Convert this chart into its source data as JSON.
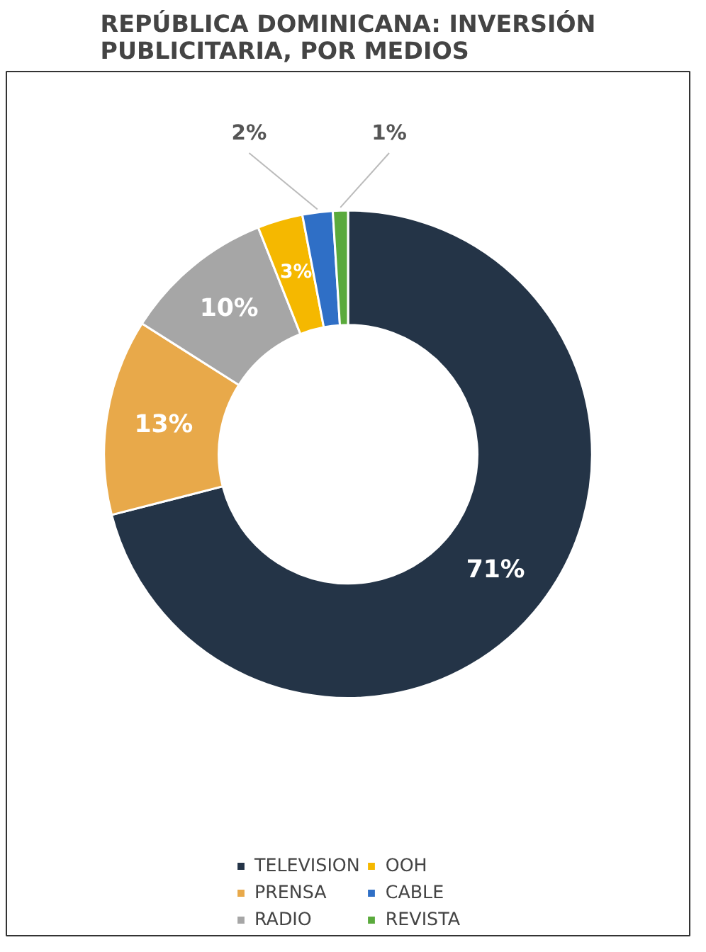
{
  "chart_data": {
    "type": "donut",
    "title": "REPÚBLICA DOMINICANA: INVERSIÓN PUBLICITARIA, POR MEDIOS",
    "categories": [
      "TELEVISION",
      "PRENSA",
      "RADIO",
      "OOH",
      "CABLE",
      "REVISTA"
    ],
    "values": [
      71,
      13,
      10,
      3,
      2,
      1
    ],
    "colors": [
      "#243447",
      "#e8a94a",
      "#a6a6a6",
      "#f5b800",
      "#2f6fc6",
      "#5aaa3c"
    ],
    "value_labels": [
      "71%",
      "13%",
      "10%",
      "3%",
      "2%",
      "1%"
    ],
    "legend": "bottom"
  }
}
